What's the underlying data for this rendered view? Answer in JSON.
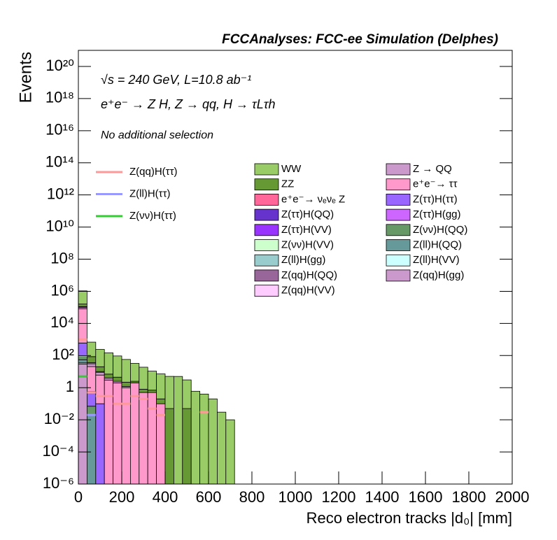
{
  "chart_data": {
    "type": "histogram",
    "stacked": true,
    "log_y": true,
    "title": "FCCAnalyses: FCC-ee Simulation (Delphes)",
    "annotations": [
      "√s = 240 GeV, L=10.8 ab⁻¹",
      "e⁺e⁻ → Z H, Z → qq, H → τLτh",
      "No additional selection"
    ],
    "xlabel": "Reco electron tracks |d₀| [mm]",
    "ylabel": "Events",
    "xlim": [
      0,
      2000
    ],
    "xticks": [
      0,
      200,
      400,
      600,
      800,
      1000,
      1200,
      1400,
      1600,
      1800,
      2000
    ],
    "ylim": [
      1e-06,
      1e+21
    ],
    "yticks": [
      {
        "value": 1e-06,
        "label": "10⁻⁶"
      },
      {
        "value": 0.0001,
        "label": "10⁻⁴"
      },
      {
        "value": 0.01,
        "label": "10⁻²"
      },
      1,
      {
        "value": 100,
        "label": "10²"
      },
      {
        "value": 10000,
        "label": "10⁴"
      },
      {
        "value": 1000000,
        "label": "10⁶"
      },
      {
        "value": 100000000,
        "label": "10⁸"
      },
      {
        "value": 10000000000,
        "label": "10¹⁰"
      },
      {
        "value": 1000000000000,
        "label": "10¹²"
      },
      {
        "value": 100000000000000,
        "label": "10¹⁴"
      },
      {
        "value": 10000000000000000,
        "label": "10¹⁶"
      },
      {
        "value": 1000000000000000000,
        "label": "10¹⁸"
      },
      {
        "value": 100000000000000000000,
        "label": "10²⁰"
      }
    ],
    "bins": [
      0,
      40,
      80,
      120,
      160,
      200,
      240,
      280,
      320,
      360,
      400,
      440,
      480,
      520,
      560,
      600,
      640,
      680,
      720
    ],
    "series": [
      {
        "name": "WW",
        "color": "#99cc66",
        "values": [
          900000,
          600,
          220,
          140,
          90,
          55,
          30,
          18,
          10,
          7,
          5,
          5,
          3,
          0.6,
          0.4,
          0.2,
          0.03,
          0.01
        ]
      },
      {
        "name": "ZZ",
        "color": "#669933",
        "values": [
          50000,
          50,
          10,
          3,
          2,
          1,
          0.5,
          0.3,
          0.2,
          0.1,
          0.05,
          null,
          0.05,
          null,
          null,
          null,
          null,
          null
        ]
      },
      {
        "name": "e⁺e⁻→ νₑνₑ Z",
        "color": "#ff6699",
        "values": [
          10000,
          5,
          1,
          null,
          null,
          null,
          null,
          null,
          null,
          null,
          null,
          null,
          null,
          null,
          null,
          null,
          null,
          null
        ]
      },
      {
        "name": "Z(ττ)H(QQ)",
        "color": "#6633cc",
        "values": [
          50,
          0.1,
          null,
          null,
          null,
          null,
          null,
          null,
          null,
          null,
          null,
          null,
          null,
          null,
          null,
          null,
          null,
          null
        ]
      },
      {
        "name": "Z(ττ)H(VV)",
        "color": "#9933ff",
        "values": [
          20,
          null,
          null,
          null,
          null,
          null,
          null,
          null,
          null,
          null,
          null,
          null,
          null,
          null,
          null,
          null,
          null,
          null
        ]
      },
      {
        "name": "Z(νν)H(VV)",
        "color": "#ccffcc",
        "values": [
          5,
          null,
          null,
          null,
          null,
          null,
          null,
          null,
          null,
          null,
          null,
          null,
          null,
          null,
          null,
          null,
          null,
          null
        ]
      },
      {
        "name": "Z(ll)H(gg)",
        "color": "#99cccc",
        "values": [
          2,
          0.01,
          null,
          null,
          null,
          null,
          null,
          null,
          null,
          null,
          null,
          null,
          null,
          null,
          null,
          null,
          null,
          null
        ]
      },
      {
        "name": "Z(qq)H(QQ)",
        "color": "#996699",
        "values": [
          100,
          0.05,
          null,
          null,
          null,
          null,
          null,
          null,
          null,
          null,
          null,
          null,
          null,
          null,
          null,
          null,
          null,
          null
        ]
      },
      {
        "name": "Z(qq)H(VV)",
        "color": "#ffccff",
        "values": [
          30,
          null,
          null,
          null,
          null,
          null,
          null,
          null,
          null,
          null,
          null,
          null,
          null,
          null,
          null,
          null,
          null,
          null
        ]
      },
      {
        "name": "Z → QQ",
        "color": "#cc99cc",
        "values": [
          20000,
          10,
          3,
          1,
          0.5,
          0.2,
          null,
          null,
          null,
          null,
          null,
          null,
          null,
          null,
          null,
          null,
          null,
          null
        ]
      },
      {
        "name": "e⁺e⁻→ ττ",
        "color": "#ff99cc",
        "values": [
          80000,
          20,
          6,
          3,
          2,
          1,
          2,
          0.5,
          0.5,
          0.1,
          null,
          null,
          null,
          null,
          null,
          null,
          null,
          null
        ]
      },
      {
        "name": "Z(ττ)H(ττ)",
        "color": "#9966ff",
        "values": [
          500,
          0.5,
          0.1,
          null,
          null,
          null,
          null,
          null,
          null,
          null,
          null,
          null,
          null,
          null,
          null,
          null,
          null,
          null
        ]
      },
      {
        "name": "Z(ττ)H(gg)",
        "color": "#cc66ff",
        "values": [
          10,
          null,
          null,
          null,
          null,
          null,
          null,
          null,
          null,
          null,
          null,
          null,
          null,
          null,
          null,
          null,
          null,
          null
        ]
      },
      {
        "name": "Z(νν)H(QQ)",
        "color": "#669966",
        "values": [
          40,
          0.05,
          null,
          null,
          null,
          null,
          null,
          null,
          null,
          null,
          null,
          null,
          null,
          null,
          null,
          null,
          null,
          null
        ]
      },
      {
        "name": "Z(ll)H(QQ)",
        "color": "#669999",
        "values": [
          20,
          0.02,
          null,
          null,
          null,
          null,
          null,
          null,
          null,
          null,
          null,
          null,
          null,
          null,
          null,
          null,
          null,
          null
        ]
      },
      {
        "name": "Z(ll)H(VV)",
        "color": "#ccffff",
        "values": [
          5,
          null,
          null,
          null,
          null,
          null,
          null,
          null,
          null,
          null,
          null,
          null,
          null,
          null,
          null,
          null,
          null,
          null
        ]
      },
      {
        "name": "Z(qq)H(gg)",
        "color": "#cc99cc",
        "values": [
          30,
          null,
          null,
          null,
          null,
          null,
          null,
          null,
          null,
          null,
          null,
          null,
          null,
          null,
          null,
          null,
          null,
          null
        ]
      },
      {
        "name": "Z(qq)H(ττ)",
        "color": "#ff9999",
        "histtype": "step",
        "values": [
          1000,
          0.5,
          0.3,
          0.3,
          0.1,
          0.1,
          0.3,
          0.2,
          0.05,
          0.02,
          null,
          null,
          null,
          null,
          0.03,
          null,
          null,
          null
        ]
      },
      {
        "name": "Z(ll)H(ττ)",
        "color": "#9999ff",
        "histtype": "step",
        "values": [
          100,
          0.02,
          null,
          null,
          null,
          null,
          null,
          null,
          null,
          null,
          null,
          null,
          null,
          null,
          null,
          null,
          null,
          null
        ]
      },
      {
        "name": "Z(νν)H(ττ)",
        "color": "#33cc33",
        "histtype": "step",
        "values": [
          5,
          null,
          null,
          null,
          null,
          null,
          null,
          null,
          null,
          null,
          null,
          null,
          null,
          null,
          null,
          null,
          null,
          null
        ]
      }
    ]
  }
}
